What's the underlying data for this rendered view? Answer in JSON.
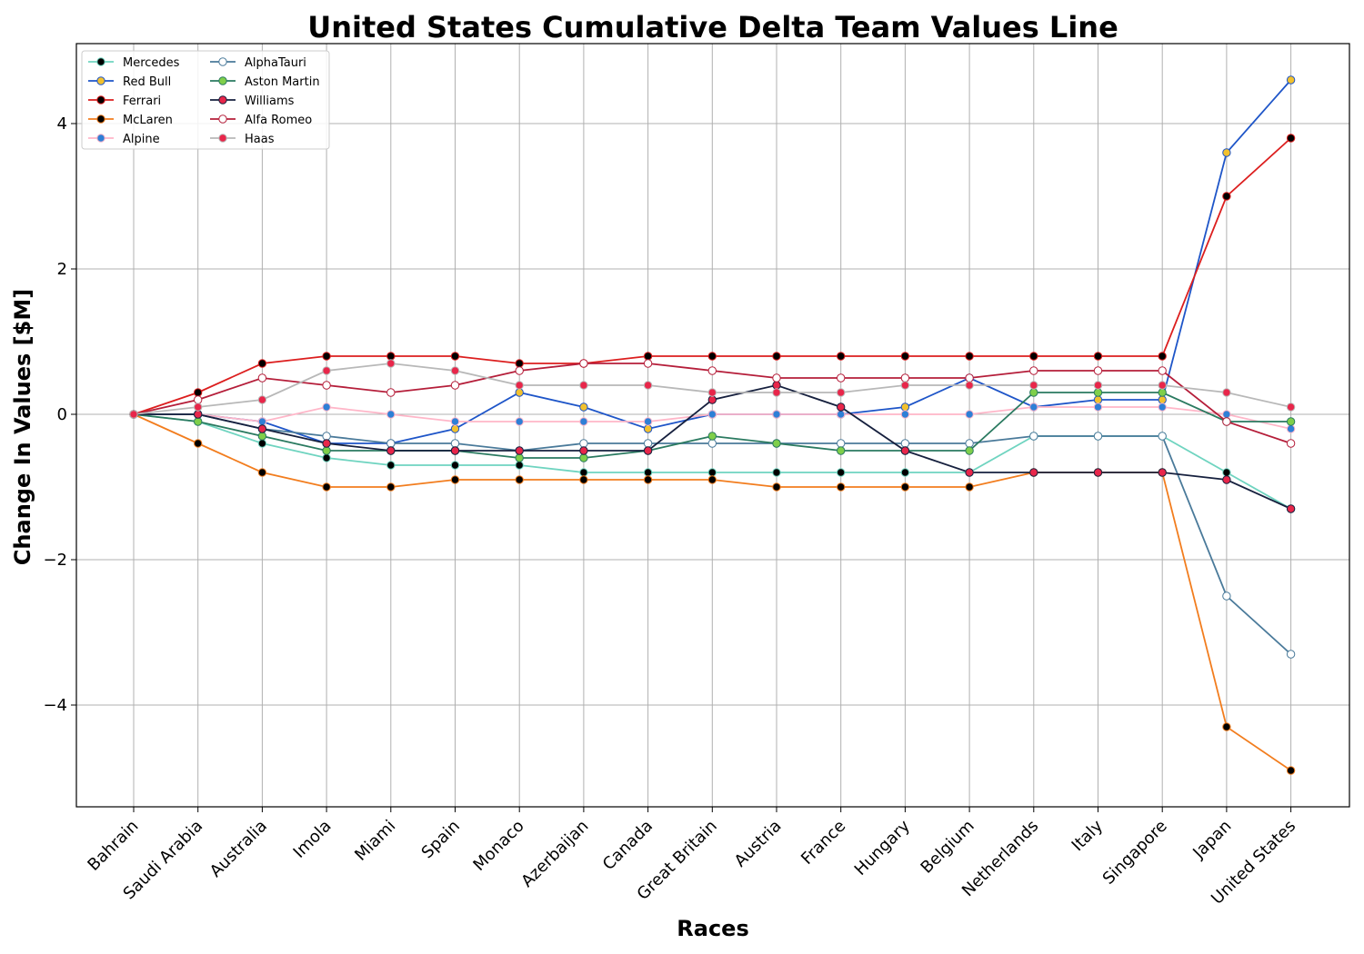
{
  "chart_data": {
    "type": "line",
    "title": "United States Cumulative Delta Team Values Line",
    "xlabel": "Races",
    "ylabel": "Change In Values [$M]",
    "ylim": [
      -5.4,
      5.1
    ],
    "yticks": [
      -4,
      -2,
      0,
      2,
      4
    ],
    "grid": true,
    "legend_position": "top-left",
    "categories": [
      "Bahrain",
      "Saudi Arabia",
      "Australia",
      "Imola",
      "Miami",
      "Spain",
      "Monaco",
      "Azerbaijan",
      "Canada",
      "Great Britain",
      "Austria",
      "France",
      "Hungary",
      "Belgium",
      "Netherlands",
      "Italy",
      "Singapore",
      "Japan",
      "United States"
    ],
    "series": [
      {
        "name": "Mercedes",
        "line_color": "#6fd4c0",
        "marker_fill": "#000000",
        "marker_edge": "#6fd4c0",
        "values": [
          0,
          -0.1,
          -0.4,
          -0.6,
          -0.7,
          -0.7,
          -0.7,
          -0.8,
          -0.8,
          -0.8,
          -0.8,
          -0.8,
          -0.8,
          -0.8,
          -0.3,
          -0.3,
          -0.3,
          -0.8,
          -1.3
        ]
      },
      {
        "name": "Red Bull",
        "line_color": "#1e55c8",
        "marker_fill": "#f2c12e",
        "marker_edge": "#1e55c8",
        "values": [
          0,
          0,
          -0.1,
          -0.4,
          -0.4,
          -0.2,
          0.3,
          0.1,
          -0.2,
          0,
          0,
          0,
          0.1,
          0.5,
          0.1,
          0.2,
          0.2,
          3.6,
          4.6
        ]
      },
      {
        "name": "Ferrari",
        "line_color": "#dc1e1e",
        "marker_fill": "#000000",
        "marker_edge": "#dc1e1e",
        "values": [
          0,
          0.3,
          0.7,
          0.8,
          0.8,
          0.8,
          0.7,
          0.7,
          0.8,
          0.8,
          0.8,
          0.8,
          0.8,
          0.8,
          0.8,
          0.8,
          0.8,
          3.0,
          3.8
        ]
      },
      {
        "name": "McLaren",
        "line_color": "#f27d1e",
        "marker_fill": "#000000",
        "marker_edge": "#f27d1e",
        "values": [
          0,
          -0.4,
          -0.8,
          -1.0,
          -1.0,
          -0.9,
          -0.9,
          -0.9,
          -0.9,
          -0.9,
          -1.0,
          -1.0,
          -1.0,
          -1.0,
          -0.8,
          -0.8,
          -0.8,
          -4.3,
          -4.9
        ]
      },
      {
        "name": "Alpine",
        "line_color": "#ffb6c8",
        "marker_fill": "#2e7fd6",
        "marker_edge": "#ffb6c8",
        "values": [
          0,
          0,
          -0.1,
          0.1,
          0,
          -0.1,
          -0.1,
          -0.1,
          -0.1,
          0,
          0,
          0,
          0,
          0,
          0.1,
          0.1,
          0.1,
          0,
          -0.2
        ]
      },
      {
        "name": "AlphaTauri",
        "line_color": "#4a7a9a",
        "marker_fill": "#ffffff",
        "marker_edge": "#4a7a9a",
        "values": [
          0,
          0,
          -0.2,
          -0.3,
          -0.4,
          -0.4,
          -0.5,
          -0.4,
          -0.4,
          -0.4,
          -0.4,
          -0.4,
          -0.4,
          -0.4,
          -0.3,
          -0.3,
          -0.3,
          -2.5,
          -3.3
        ]
      },
      {
        "name": "Aston Martin",
        "line_color": "#2a7a60",
        "marker_fill": "#7fcf4a",
        "marker_edge": "#2a7a60",
        "values": [
          0,
          -0.1,
          -0.3,
          -0.5,
          -0.5,
          -0.5,
          -0.6,
          -0.6,
          -0.5,
          -0.3,
          -0.4,
          -0.5,
          -0.5,
          -0.5,
          0.3,
          0.3,
          0.3,
          -0.1,
          -0.1
        ]
      },
      {
        "name": "Williams",
        "line_color": "#16203e",
        "marker_fill": "#e8264a",
        "marker_edge": "#16203e",
        "values": [
          0,
          0,
          -0.2,
          -0.4,
          -0.5,
          -0.5,
          -0.5,
          -0.5,
          -0.5,
          0.2,
          0.4,
          0.1,
          -0.5,
          -0.8,
          -0.8,
          -0.8,
          -0.8,
          -0.9,
          -1.3
        ]
      },
      {
        "name": "Alfa Romeo",
        "line_color": "#b51e3a",
        "marker_fill": "#ffffff",
        "marker_edge": "#b51e3a",
        "values": [
          0,
          0.2,
          0.5,
          0.4,
          0.3,
          0.4,
          0.6,
          0.7,
          0.7,
          0.6,
          0.5,
          0.5,
          0.5,
          0.5,
          0.6,
          0.6,
          0.6,
          -0.1,
          -0.4
        ]
      },
      {
        "name": "Haas",
        "line_color": "#b8b8b8",
        "marker_fill": "#e8264a",
        "marker_edge": "#b8b8b8",
        "values": [
          0,
          0.1,
          0.2,
          0.6,
          0.7,
          0.6,
          0.4,
          0.4,
          0.4,
          0.3,
          0.3,
          0.3,
          0.4,
          0.4,
          0.4,
          0.4,
          0.4,
          0.3,
          0.1
        ]
      }
    ]
  }
}
